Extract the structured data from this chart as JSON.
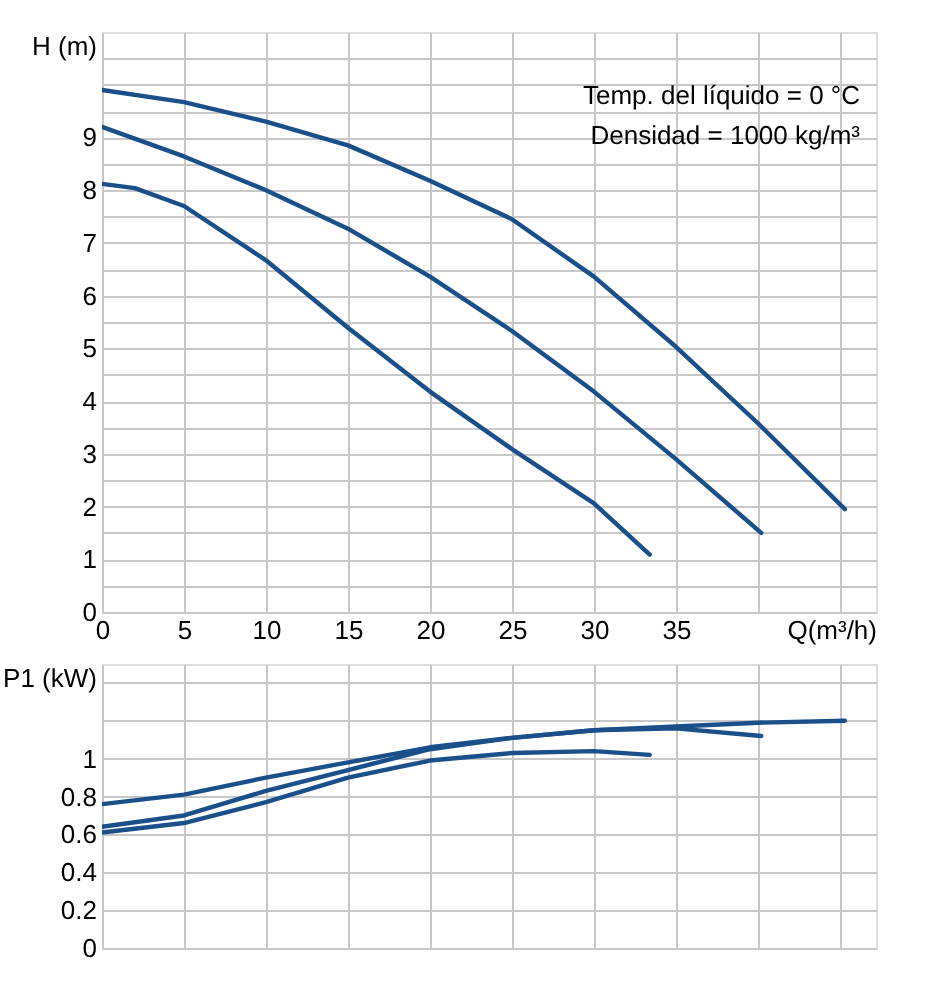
{
  "chart_data": [
    {
      "type": "line",
      "ylabel": "H (m)",
      "xlabel": "Q(m³/h)",
      "annotations": [
        "Temp. del líquido = 0 °C",
        "Densidad = 1000 kg/m³"
      ],
      "xlim": [
        0,
        47.2
      ],
      "xticks": [
        0,
        5,
        10,
        15,
        20,
        25,
        30,
        35,
        {
          "value": 40,
          "label": null
        },
        {
          "value": 45,
          "label": null
        }
      ],
      "ylim": [
        0,
        11
      ],
      "yticks": [
        0,
        {
          "value": 0.5,
          "label": null
        },
        1,
        {
          "value": 1.5,
          "label": null
        },
        2,
        {
          "value": 2.5,
          "label": null
        },
        3,
        {
          "value": 3.5,
          "label": null
        },
        4,
        {
          "value": 4.5,
          "label": null
        },
        5,
        {
          "value": 5.5,
          "label": null
        },
        6,
        {
          "value": 6.5,
          "label": null
        },
        7,
        {
          "value": 7.5,
          "label": null
        },
        8,
        {
          "value": 8.5,
          "label": null
        },
        9,
        {
          "value": 9.5,
          "label": null
        },
        {
          "value": 10,
          "label": null
        },
        {
          "value": 10.5,
          "label": null
        }
      ],
      "grid": true,
      "line_style": "solid",
      "marker": "none",
      "series": [
        {
          "color": "#1a4f8a",
          "x": [
            0,
            5,
            10,
            15,
            20,
            25,
            30,
            35,
            40,
            45.3
          ],
          "values": [
            9.9,
            9.67,
            9.3,
            8.85,
            8.18,
            7.45,
            6.36,
            5.03,
            3.58,
            1.95
          ]
        },
        {
          "color": "#1a4f8a",
          "x": [
            0,
            5,
            10,
            15,
            20,
            25,
            30,
            35,
            40.2
          ],
          "values": [
            9.2,
            8.64,
            8.0,
            7.27,
            6.36,
            5.33,
            4.18,
            2.9,
            1.5
          ]
        },
        {
          "color": "#1a4f8a",
          "x": [
            0,
            2,
            5,
            10,
            15,
            20,
            25,
            30,
            33.4
          ],
          "values": [
            8.12,
            8.04,
            7.7,
            6.67,
            5.39,
            4.18,
            3.09,
            2.06,
            1.09
          ]
        }
      ]
    },
    {
      "type": "line",
      "ylabel": "P1 (kW)",
      "tick_labels": "y",
      "xlim": [
        0,
        47.2
      ],
      "xticks": [
        0,
        5,
        10,
        15,
        20,
        25,
        30,
        35,
        40,
        45
      ],
      "ylim": [
        0,
        1.5
      ],
      "yticks": [
        0,
        0.2,
        0.4,
        0.6,
        0.8,
        1,
        {
          "value": 1.2,
          "label": null
        },
        {
          "value": 1.4,
          "label": null
        }
      ],
      "grid": true,
      "line_style": "solid",
      "marker": "none",
      "series": [
        {
          "color": "#1a4f8a",
          "x": [
            0,
            5,
            10,
            15,
            20,
            25,
            30,
            35,
            40,
            45.3
          ],
          "values": [
            0.76,
            0.81,
            0.9,
            0.98,
            1.06,
            1.11,
            1.15,
            1.17,
            1.19,
            1.2
          ]
        },
        {
          "color": "#1a4f8a",
          "x": [
            0,
            5,
            10,
            15,
            20,
            25,
            30,
            35,
            40.2
          ],
          "values": [
            0.64,
            0.7,
            0.83,
            0.94,
            1.05,
            1.11,
            1.15,
            1.16,
            1.12
          ]
        },
        {
          "color": "#1a4f8a",
          "x": [
            0,
            5,
            10,
            15,
            20,
            25,
            30,
            33.4
          ],
          "values": [
            0.61,
            0.66,
            0.77,
            0.9,
            0.99,
            1.03,
            1.04,
            1.02
          ]
        }
      ]
    }
  ]
}
